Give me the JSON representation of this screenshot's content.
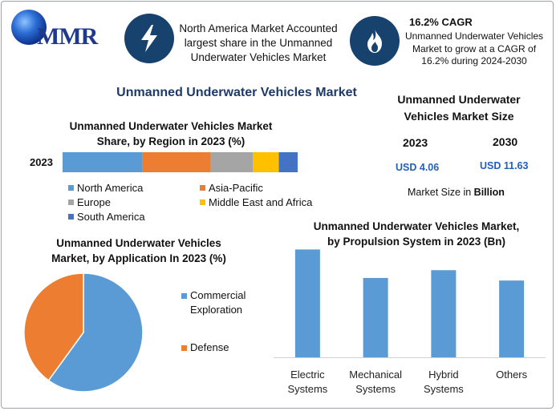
{
  "brand": {
    "name": "MMR"
  },
  "header": {
    "info1": "North America Market Accounted largest share in the Unmanned Underwater Vehicles Market",
    "cagr_title": "16.2% CAGR",
    "cagr_desc": "Unmanned Underwater Vehicles Market to grow at a CAGR of 16.2% during 2024-2030"
  },
  "main_title": "Unmanned Underwater Vehicles Market",
  "market_size": {
    "title": "Unmanned Underwater Vehicles Market Size",
    "year1": "2023",
    "year2": "2030",
    "value1": "USD 4.06",
    "value2": "USD 11.63",
    "note_prefix": "Market Size in ",
    "note_unit": "Billion",
    "value_color": "#1f5fbf"
  },
  "chart_data": [
    {
      "type": "bar",
      "orientation": "horizontal-stacked",
      "title": "Unmanned Underwater Vehicles Market Share, by Region in 2023 (%)",
      "categories": [
        "2023"
      ],
      "series": [
        {
          "name": "North America",
          "values": [
            34
          ],
          "color": "#5b9bd5"
        },
        {
          "name": "Asia-Pacific",
          "values": [
            29
          ],
          "color": "#ed7d31"
        },
        {
          "name": "Europe",
          "values": [
            18
          ],
          "color": "#a5a5a5"
        },
        {
          "name": "Middle East and Africa",
          "values": [
            11
          ],
          "color": "#ffc000"
        },
        {
          "name": "South America",
          "values": [
            8
          ],
          "color": "#4472c4"
        }
      ],
      "legend": "bottom"
    },
    {
      "type": "pie",
      "title": "Unmanned Underwater Vehicles Market, by Application In 2023 (%)",
      "slices": [
        {
          "name": "Commercial Exploration",
          "value": 60,
          "color": "#5b9bd5"
        },
        {
          "name": "Defense",
          "value": 40,
          "color": "#ed7d31"
        }
      ],
      "legend": "right"
    },
    {
      "type": "bar",
      "title": "Unmanned Underwater Vehicles Market, by Propulsion System in 2023 (Bn)",
      "categories": [
        "Electric Systems",
        "Mechanical Systems",
        "Hybrid Systems",
        "Others"
      ],
      "values": [
        1.25,
        0.92,
        1.01,
        0.89
      ],
      "ylim": [
        0,
        1.3
      ],
      "color": "#5b9bd5",
      "grid": false
    }
  ]
}
